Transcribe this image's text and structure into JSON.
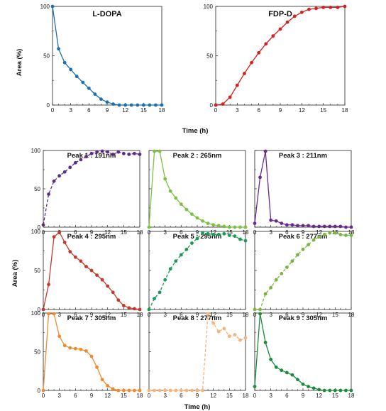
{
  "figure": {
    "top_xlabel": "Time (h)",
    "top_ylabel": "Area (%)",
    "bottom_xlabel": "Time (h)",
    "bottom_ylabel": "Area (%)"
  },
  "chart_data": [
    {
      "type": "line",
      "title": "L-DOPA",
      "color": "#1f6fb3",
      "dashed": false,
      "xlim": [
        0,
        18
      ],
      "ylim": [
        0,
        100
      ],
      "x": [
        0,
        1,
        2,
        3,
        4,
        5,
        6,
        7,
        8,
        9,
        10,
        11,
        12,
        13,
        14,
        15,
        16,
        17,
        18
      ],
      "y": [
        100,
        57,
        43,
        36,
        29,
        23,
        17,
        11,
        6,
        3,
        1,
        0,
        0,
        0,
        0,
        0,
        0,
        0,
        0
      ],
      "xticks": [
        "0",
        "3",
        "6",
        "9",
        "12",
        "15",
        "18"
      ],
      "yticks": [
        "0",
        "50",
        "100"
      ]
    },
    {
      "type": "line",
      "title": "FDP-D",
      "color": "#d42020",
      "dashed": false,
      "xlim": [
        0,
        18
      ],
      "ylim": [
        0,
        100
      ],
      "x": [
        0,
        1,
        2,
        3,
        4,
        5,
        6,
        7,
        8,
        9,
        10,
        11,
        12,
        13,
        14,
        15,
        16,
        17,
        18
      ],
      "y": [
        0,
        1,
        8,
        20,
        32,
        43,
        53,
        62,
        70,
        77,
        84,
        90,
        94,
        97,
        98,
        99,
        99,
        99,
        100
      ],
      "xticks": [
        "0",
        "3",
        "6",
        "9",
        "12",
        "15",
        "18"
      ],
      "yticks": [
        "0",
        "50",
        "100"
      ]
    },
    {
      "type": "line",
      "title": "Peak 1 : 191nm",
      "color": "#5b2d83",
      "dashed": true,
      "xlim": [
        0,
        18
      ],
      "ylim": [
        0,
        100
      ],
      "x": [
        0,
        1,
        2,
        3,
        4,
        5,
        6,
        7,
        8,
        9,
        10,
        11,
        12,
        13,
        14,
        15,
        16,
        17,
        18
      ],
      "y": [
        3,
        43,
        60,
        67,
        72,
        78,
        84,
        88,
        92,
        96,
        98,
        99,
        98,
        95,
        98,
        96,
        95,
        96,
        95
      ],
      "xticks": [
        "0",
        "3",
        "6",
        "9",
        "12",
        "15",
        "18"
      ],
      "yticks": [
        "0",
        "50",
        "100"
      ]
    },
    {
      "type": "line",
      "title": "Peak 2 : 265nm",
      "color": "#7cc142",
      "dashed": false,
      "xlim": [
        0,
        18
      ],
      "ylim": [
        0,
        100
      ],
      "x": [
        0,
        1,
        2,
        3,
        4,
        5,
        6,
        7,
        8,
        9,
        10,
        11,
        12,
        13,
        14,
        15,
        16,
        17,
        18
      ],
      "y": [
        0,
        99,
        99,
        63,
        47,
        38,
        30,
        23,
        17,
        12,
        8,
        5,
        3,
        2,
        1,
        0,
        0,
        0,
        0
      ],
      "xticks": [
        "0",
        "3",
        "6",
        "9",
        "12",
        "15",
        "18"
      ],
      "yticks": [
        "0",
        "50",
        "100"
      ]
    },
    {
      "type": "line",
      "title": "Peak 3 :  211nm",
      "color": "#6b2a8c",
      "dashed": false,
      "xlim": [
        0,
        18
      ],
      "ylim": [
        0,
        100
      ],
      "x": [
        0,
        1,
        2,
        3,
        4,
        5,
        6,
        7,
        8,
        9,
        10,
        11,
        12,
        13,
        14,
        15,
        16,
        17,
        18
      ],
      "y": [
        5,
        65,
        99,
        9,
        8,
        5,
        3,
        3,
        2,
        2,
        2,
        1,
        1,
        1,
        1,
        1,
        1,
        0,
        0
      ],
      "xticks": [
        "0",
        "3",
        "6",
        "9",
        "12",
        "15",
        "18"
      ],
      "yticks": [
        "0",
        "50",
        "100"
      ]
    },
    {
      "type": "line",
      "title": "Peak 4 : 295nm",
      "color": "#c43a2a",
      "dashed": false,
      "xlim": [
        0,
        18
      ],
      "ylim": [
        0,
        100
      ],
      "x": [
        0,
        1,
        2,
        3,
        4,
        5,
        6,
        7,
        8,
        9,
        10,
        11,
        12,
        13,
        14,
        15,
        16,
        17,
        18
      ],
      "y": [
        0,
        32,
        93,
        99,
        86,
        74,
        67,
        62,
        55,
        50,
        44,
        38,
        30,
        22,
        12,
        5,
        2,
        1,
        0
      ],
      "xticks": [
        "0",
        "3",
        "6",
        "9",
        "12",
        "15",
        "18"
      ],
      "yticks": [
        "0",
        "50",
        "100"
      ]
    },
    {
      "type": "line",
      "title": "Peak 5 : 295nm",
      "color": "#1a9a57",
      "dashed": true,
      "xlim": [
        0,
        18
      ],
      "ylim": [
        0,
        100
      ],
      "x": [
        0,
        1,
        2,
        3,
        4,
        5,
        6,
        7,
        8,
        9,
        10,
        11,
        12,
        13,
        14,
        15,
        16,
        17,
        18
      ],
      "y": [
        0,
        14,
        22,
        38,
        52,
        62,
        70,
        77,
        85,
        91,
        98,
        97,
        96,
        96,
        97,
        95,
        94,
        90,
        88
      ],
      "xticks": [
        "0",
        "3",
        "6",
        "9",
        "12",
        "15",
        "18"
      ],
      "yticks": [
        "0",
        "50",
        "100"
      ]
    },
    {
      "type": "line",
      "title": "Peak 6 : 277nm",
      "color": "#79b543",
      "dashed": true,
      "xlim": [
        0,
        18
      ],
      "ylim": [
        0,
        100
      ],
      "x": [
        0,
        1,
        2,
        3,
        4,
        5,
        6,
        7,
        8,
        9,
        10,
        11,
        12,
        13,
        14,
        15,
        16,
        17,
        18
      ],
      "y": [
        0,
        0,
        20,
        28,
        38,
        46,
        54,
        62,
        70,
        77,
        83,
        89,
        93,
        96,
        98,
        98,
        96,
        95,
        95
      ],
      "xticks": [
        "0",
        "3",
        "6",
        "9",
        "12",
        "15",
        "18"
      ],
      "yticks": [
        "0",
        "50",
        "100"
      ]
    },
    {
      "type": "line",
      "title": "Peak 7 : 305nm",
      "color": "#ef8a2f",
      "dashed": false,
      "xlim": [
        0,
        18
      ],
      "ylim": [
        0,
        100
      ],
      "x": [
        0,
        1,
        2,
        3,
        4,
        5,
        6,
        7,
        8,
        9,
        10,
        11,
        12,
        13,
        14,
        15,
        16,
        17,
        18
      ],
      "y": [
        0,
        99,
        99,
        70,
        58,
        55,
        54,
        53,
        51,
        44,
        30,
        14,
        6,
        2,
        0,
        0,
        0,
        0,
        0
      ],
      "xticks": [
        "0",
        "3",
        "6",
        "9",
        "12",
        "15",
        "18"
      ],
      "yticks": [
        "0",
        "50",
        "100"
      ]
    },
    {
      "type": "line",
      "title": "Peak 8 : 277nm",
      "color": "#f6b37a",
      "dashed": true,
      "xlim": [
        0,
        18
      ],
      "ylim": [
        0,
        100
      ],
      "x": [
        0,
        1,
        2,
        3,
        4,
        5,
        6,
        7,
        8,
        9,
        10,
        11,
        12,
        13,
        14,
        15,
        16,
        17,
        18
      ],
      "y": [
        0,
        0,
        0,
        0,
        0,
        0,
        0,
        0,
        0,
        0,
        0,
        99,
        87,
        76,
        80,
        70,
        72,
        65,
        68
      ],
      "xticks": [
        "0",
        "3",
        "6",
        "9",
        "12",
        "15",
        "18"
      ],
      "yticks": [
        "0",
        "50",
        "100"
      ]
    },
    {
      "type": "line",
      "title": "Peak 9 : 305nm",
      "color": "#1e8a3a",
      "dashed": false,
      "xlim": [
        0,
        18
      ],
      "ylim": [
        0,
        100
      ],
      "x": [
        0,
        1,
        2,
        3,
        4,
        5,
        6,
        7,
        8,
        9,
        10,
        11,
        12,
        13,
        14,
        15,
        16,
        17,
        18
      ],
      "y": [
        5,
        99,
        62,
        40,
        30,
        26,
        23,
        20,
        14,
        8,
        5,
        3,
        1,
        0,
        0,
        0,
        0,
        0,
        0
      ],
      "xticks": [
        "0",
        "3",
        "6",
        "9",
        "12",
        "15",
        "18"
      ],
      "yticks": [
        "0",
        "50",
        "100"
      ]
    }
  ]
}
